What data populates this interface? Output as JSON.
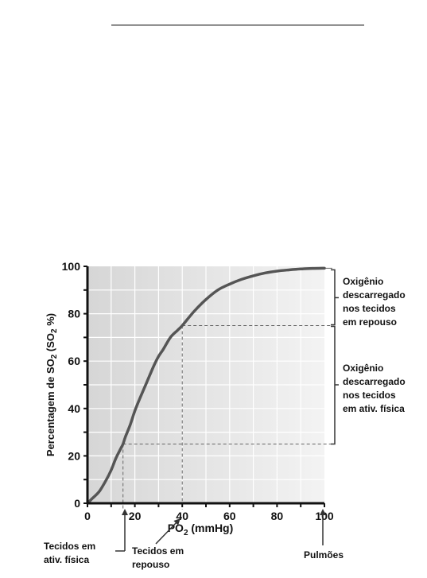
{
  "chart_data": {
    "type": "line",
    "xlabel": "PO2 (mmHg)",
    "xlabel_parts": {
      "main": "PO",
      "sub": "2",
      "tail": " (mmHg)"
    },
    "ylabel": "Percentagem de SO2 (SO2 %)",
    "ylabel_parts": {
      "pre": "Percentagem de SO",
      "sub1": "2",
      "mid": " (SO",
      "sub2": "2",
      "post": " %)"
    },
    "xlim": [
      0,
      100
    ],
    "ylim": [
      0,
      100
    ],
    "xticks": [
      "0",
      "20",
      "40",
      "60",
      "80",
      "100"
    ],
    "yticks": [
      "0",
      "20",
      "40",
      "60",
      "80",
      "100"
    ],
    "grid": true,
    "series": [
      {
        "x": [
          0,
          2,
          5,
          8,
          10,
          12,
          14,
          15,
          16,
          18,
          20,
          22,
          25,
          28,
          30,
          32,
          35,
          38,
          40,
          45,
          50,
          55,
          60,
          65,
          70,
          75,
          80,
          85,
          90,
          95,
          100
        ],
        "values": [
          0,
          2,
          5,
          10,
          14,
          19,
          23,
          25,
          28,
          33,
          39,
          44,
          51,
          58,
          62,
          65,
          70,
          73,
          75,
          81,
          86,
          90,
          92.5,
          94.5,
          96,
          97.2,
          98,
          98.5,
          98.9,
          99.1,
          99.2
        ]
      }
    ],
    "reference_points": [
      {
        "x": 15,
        "y": 25
      },
      {
        "x": 40,
        "y": 75
      }
    ],
    "annotations": {
      "resting_bracket": [
        "Oxigênio",
        "descarregado",
        "nos tecidos",
        "em repouso"
      ],
      "exercise_bracket": [
        "Oxigênio",
        "descarregado",
        "nos tecidos",
        "em ativ. física"
      ],
      "exercise_arrow": [
        "Tecidos em",
        "ativ. física"
      ],
      "resting_arrow": [
        "Tecidos em",
        "repouso"
      ],
      "lungs_arrow": [
        "Pulmões"
      ]
    }
  }
}
